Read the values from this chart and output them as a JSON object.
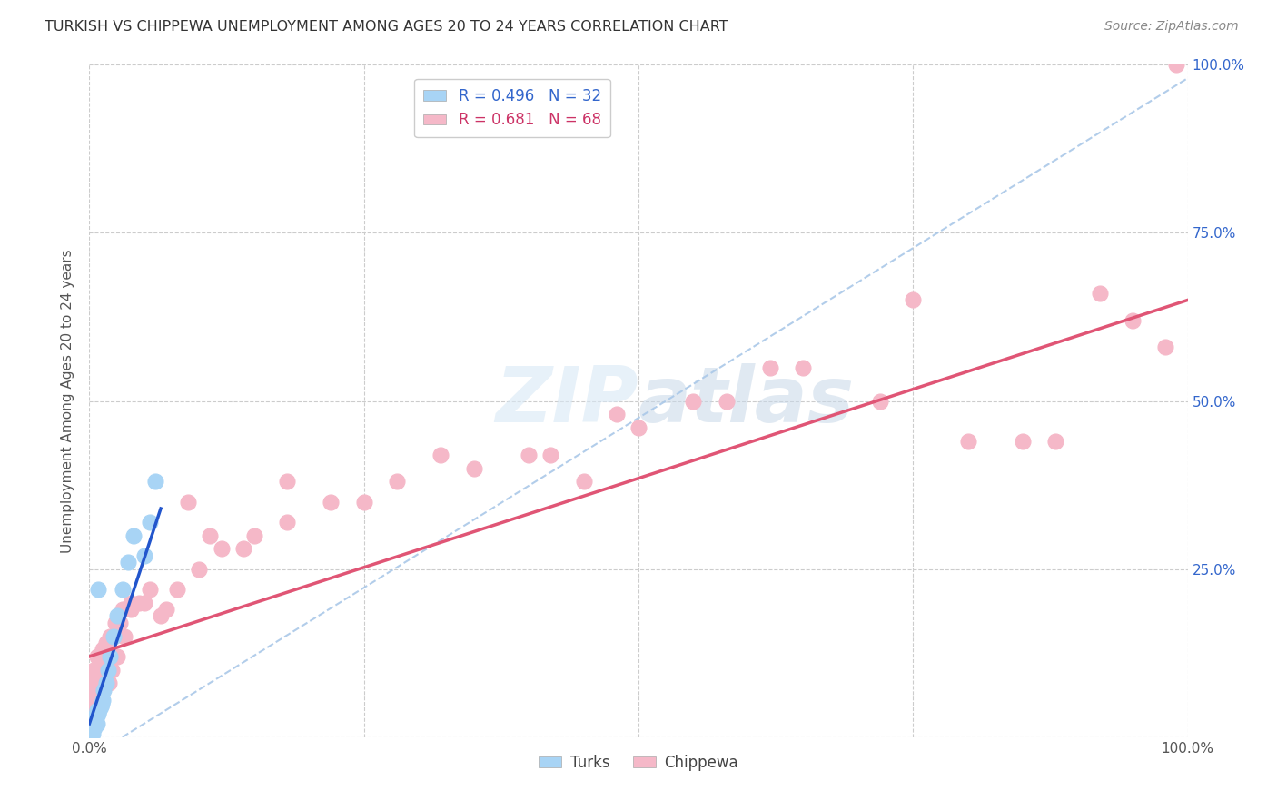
{
  "title": "TURKISH VS CHIPPEWA UNEMPLOYMENT AMONG AGES 20 TO 24 YEARS CORRELATION CHART",
  "source": "Source: ZipAtlas.com",
  "ylabel": "Unemployment Among Ages 20 to 24 years",
  "xlim": [
    0,
    1
  ],
  "ylim": [
    0,
    1
  ],
  "legend_label1": "R = 0.496   N = 32",
  "legend_label2": "R = 0.681   N = 68",
  "legend_bottom1": "Turks",
  "legend_bottom2": "Chippewa",
  "turks_color": "#a8d4f5",
  "chippewa_color": "#f5b8c8",
  "turks_line_color": "#2255cc",
  "chippewa_line_color": "#e05575",
  "dashed_line_color": "#aac8e8",
  "background_color": "#ffffff",
  "turks_R": 0.496,
  "turks_N": 32,
  "chippewa_R": 0.681,
  "chippewa_N": 68,
  "turks_x": [
    0.001,
    0.002,
    0.002,
    0.003,
    0.003,
    0.004,
    0.004,
    0.005,
    0.005,
    0.006,
    0.006,
    0.007,
    0.007,
    0.008,
    0.009,
    0.01,
    0.011,
    0.012,
    0.013,
    0.015,
    0.017,
    0.019,
    0.022,
    0.025,
    0.03,
    0.035,
    0.04,
    0.05,
    0.055,
    0.06,
    0.008,
    0.003
  ],
  "turks_y": [
    0.01,
    0.015,
    0.02,
    0.025,
    0.01,
    0.02,
    0.03,
    0.015,
    0.025,
    0.02,
    0.03,
    0.04,
    0.02,
    0.035,
    0.04,
    0.045,
    0.05,
    0.055,
    0.07,
    0.08,
    0.1,
    0.12,
    0.15,
    0.18,
    0.22,
    0.26,
    0.3,
    0.27,
    0.32,
    0.38,
    0.22,
    0.005
  ],
  "chippewa_x": [
    0.001,
    0.002,
    0.003,
    0.003,
    0.004,
    0.005,
    0.006,
    0.007,
    0.008,
    0.009,
    0.01,
    0.011,
    0.012,
    0.013,
    0.015,
    0.016,
    0.018,
    0.02,
    0.022,
    0.025,
    0.028,
    0.032,
    0.038,
    0.045,
    0.055,
    0.065,
    0.08,
    0.1,
    0.12,
    0.15,
    0.18,
    0.22,
    0.28,
    0.35,
    0.42,
    0.5,
    0.58,
    0.65,
    0.72,
    0.8,
    0.88,
    0.95,
    0.98,
    0.99,
    0.55,
    0.45,
    0.62,
    0.75,
    0.85,
    0.92,
    0.005,
    0.007,
    0.009,
    0.014,
    0.019,
    0.024,
    0.03,
    0.038,
    0.05,
    0.07,
    0.09,
    0.11,
    0.14,
    0.18,
    0.25,
    0.32,
    0.4,
    0.48
  ],
  "chippewa_y": [
    0.02,
    0.06,
    0.08,
    0.04,
    0.1,
    0.06,
    0.09,
    0.12,
    0.08,
    0.07,
    0.06,
    0.1,
    0.13,
    0.09,
    0.14,
    0.12,
    0.08,
    0.1,
    0.15,
    0.12,
    0.17,
    0.15,
    0.19,
    0.2,
    0.22,
    0.18,
    0.22,
    0.25,
    0.28,
    0.3,
    0.32,
    0.35,
    0.38,
    0.4,
    0.42,
    0.46,
    0.5,
    0.55,
    0.5,
    0.44,
    0.44,
    0.62,
    0.58,
    1.0,
    0.5,
    0.38,
    0.55,
    0.65,
    0.44,
    0.66,
    0.03,
    0.05,
    0.09,
    0.13,
    0.15,
    0.17,
    0.19,
    0.2,
    0.2,
    0.19,
    0.35,
    0.3,
    0.28,
    0.38,
    0.35,
    0.42,
    0.42,
    0.48
  ],
  "chip_line_x0": 0.0,
  "chip_line_x1": 1.0,
  "chip_line_y0": 0.12,
  "chip_line_y1": 0.65,
  "turks_line_x0": 0.0,
  "turks_line_x1": 0.065,
  "turks_line_y0": 0.02,
  "turks_line_y1": 0.34,
  "dash_line_x0": 0.03,
  "dash_line_x1": 1.0,
  "dash_line_y0": 0.0,
  "dash_line_y1": 0.98
}
